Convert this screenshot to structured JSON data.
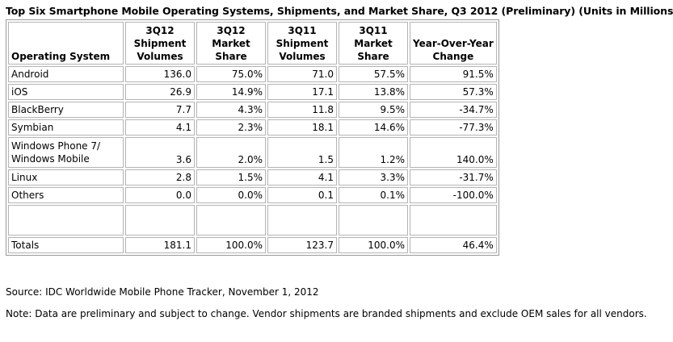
{
  "title": "Top Six Smartphone Mobile Operating Systems, Shipments, and Market Share, Q3 2012 (Preliminary) (Units in Millions)",
  "table": {
    "headers": [
      {
        "line1": "",
        "line2": "",
        "line3": "Operating System"
      },
      {
        "line1": "3Q12",
        "line2": "Shipment",
        "line3": "Volumes"
      },
      {
        "line1": "3Q12",
        "line2": "Market",
        "line3": "Share"
      },
      {
        "line1": "3Q11",
        "line2": "Shipment",
        "line3": "Volumes"
      },
      {
        "line1": "3Q11",
        "line2": "Market",
        "line3": "Share"
      },
      {
        "line1": "",
        "line2": "Year-Over-Year",
        "line3": "Change"
      }
    ],
    "rows": [
      {
        "os_line1": "Android",
        "os_line2": "",
        "v12": "136.0",
        "s12": "75.0%",
        "v11": "71.0",
        "s11": "57.5%",
        "yoy": "91.5%"
      },
      {
        "os_line1": "iOS",
        "os_line2": "",
        "v12": "26.9",
        "s12": "14.9%",
        "v11": "17.1",
        "s11": "13.8%",
        "yoy": "57.3%"
      },
      {
        "os_line1": "BlackBerry",
        "os_line2": "",
        "v12": "7.7",
        "s12": "4.3%",
        "v11": "11.8",
        "s11": "9.5%",
        "yoy": "-34.7%"
      },
      {
        "os_line1": "Symbian",
        "os_line2": "",
        "v12": "4.1",
        "s12": "2.3%",
        "v11": "18.1",
        "s11": "14.6%",
        "yoy": "-77.3%"
      },
      {
        "os_line1": "Windows Phone 7/",
        "os_line2": "Windows Mobile",
        "v12": "3.6",
        "s12": "2.0%",
        "v11": "1.5",
        "s11": "1.2%",
        "yoy": "140.0%"
      },
      {
        "os_line1": "Linux",
        "os_line2": "",
        "v12": "2.8",
        "s12": "1.5%",
        "v11": "4.1",
        "s11": "3.3%",
        "yoy": "-31.7%"
      },
      {
        "os_line1": "Others",
        "os_line2": "",
        "v12": "0.0",
        "s12": "0.0%",
        "v11": "0.1",
        "s11": "0.1%",
        "yoy": "-100.0%"
      }
    ],
    "totals": {
      "label": "Totals",
      "v12": "181.1",
      "s12": "100.0%",
      "v11": "123.7",
      "s11": "100.0%",
      "yoy": "46.4%"
    }
  },
  "source": "Source: IDC Worldwide Mobile Phone Tracker, November 1, 2012",
  "note": "Note: Data are preliminary and subject to change. Vendor shipments are branded shipments and exclude OEM sales for all vendors."
}
